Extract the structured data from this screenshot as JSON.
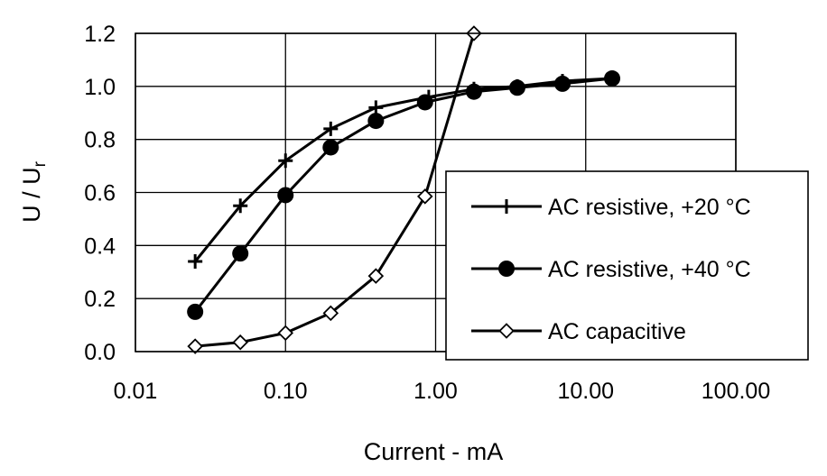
{
  "chart_data": {
    "type": "line",
    "xscale": "log",
    "xlabel": "Current - mA",
    "ylabel_main": "U / U",
    "ylabel_sub": "r",
    "xlim": [
      0.01,
      100
    ],
    "ylim": [
      0,
      1.2
    ],
    "grid": true,
    "legend_position": "lower-right",
    "x_ticks": [
      0.01,
      0.1,
      1,
      10,
      100
    ],
    "x_tick_labels": [
      "0.01",
      "0.10",
      "1.00",
      "10.00",
      "100.00"
    ],
    "y_ticks": [
      0,
      0.2,
      0.4,
      0.6,
      0.8,
      1.0,
      1.2
    ],
    "y_tick_labels": [
      "0.0",
      "0.2",
      "0.4",
      "0.6",
      "0.8",
      "1.0",
      "1.2"
    ],
    "series": [
      {
        "name": "AC resistive, +20 °C",
        "marker": "plus",
        "x": [
          0.025,
          0.05,
          0.1,
          0.2,
          0.4,
          0.9,
          1.8,
          3.5,
          7,
          15
        ],
        "y": [
          0.34,
          0.55,
          0.72,
          0.84,
          0.92,
          0.96,
          0.99,
          1.0,
          1.02,
          1.03
        ]
      },
      {
        "name": "AC resistive, +40 °C",
        "marker": "filled-circle",
        "x": [
          0.025,
          0.05,
          0.1,
          0.2,
          0.4,
          0.85,
          1.8,
          3.5,
          7,
          15
        ],
        "y": [
          0.15,
          0.37,
          0.59,
          0.77,
          0.87,
          0.94,
          0.98,
          0.995,
          1.01,
          1.03
        ]
      },
      {
        "name": "AC capacitive",
        "marker": "open-diamond",
        "x": [
          0.025,
          0.05,
          0.1,
          0.2,
          0.4,
          0.85,
          1.8
        ],
        "y": [
          0.02,
          0.035,
          0.07,
          0.145,
          0.285,
          0.585,
          1.2
        ]
      }
    ]
  }
}
